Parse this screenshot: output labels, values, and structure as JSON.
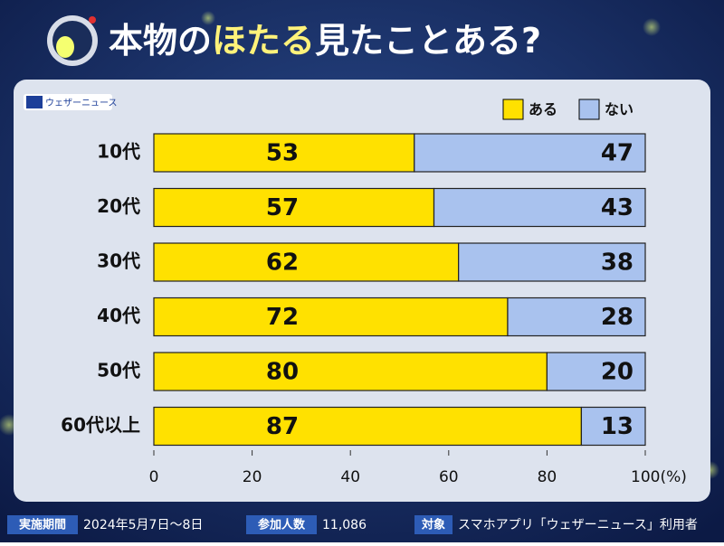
{
  "chart_data": {
    "type": "stacked-barh",
    "title_parts": [
      "本物の",
      "ほたる",
      "見たことある?"
    ],
    "source": "ウェザーニュース",
    "categories": [
      "10代",
      "20代",
      "30代",
      "40代",
      "50代",
      "60代以上"
    ],
    "series": [
      {
        "name": "ある",
        "color": "#ffe100",
        "values": [
          53,
          57,
          62,
          72,
          80,
          87
        ]
      },
      {
        "name": "ない",
        "color": "#a9c2ee",
        "values": [
          47,
          43,
          38,
          28,
          20,
          13
        ]
      }
    ],
    "xlim": [
      0,
      100
    ],
    "xticks": [
      0,
      20,
      40,
      60,
      80,
      {
        "value": 100,
        "label": "100(%)"
      }
    ],
    "legend": "top-right",
    "footer": [
      {
        "label": "実施期間",
        "text": "2024年5月7日〜8日"
      },
      {
        "label": "参加人数",
        "text": "11,086"
      },
      {
        "label": "対象",
        "text": "スマホアプリ「ウェザーニュース」利用者"
      }
    ]
  }
}
